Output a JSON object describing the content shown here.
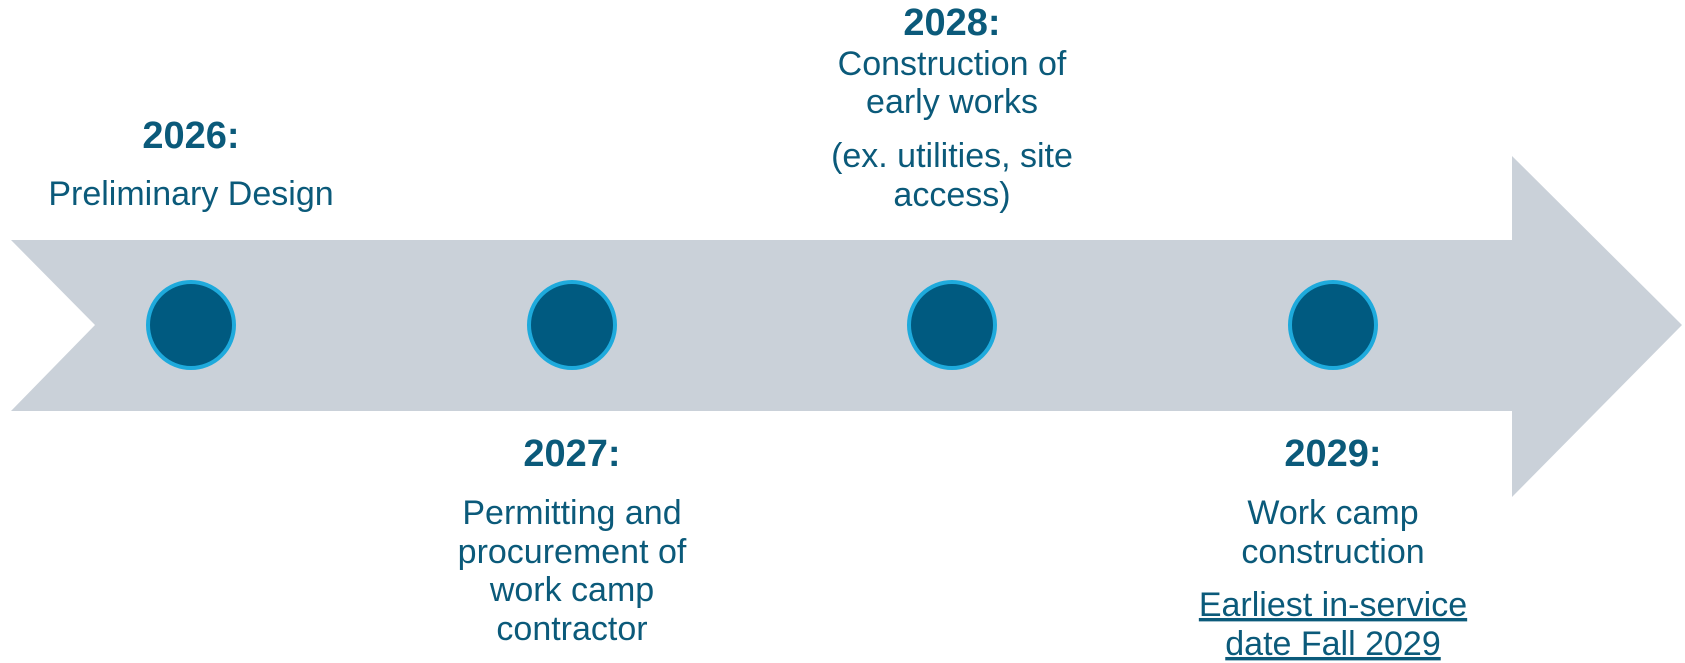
{
  "events": [
    {
      "year": "2026:",
      "description": [
        "Preliminary Design"
      ]
    },
    {
      "year": "2027:",
      "description": [
        "Permitting and",
        "procurement of",
        "work camp",
        "contractor"
      ]
    },
    {
      "year": "2028:",
      "description": [
        "Construction of",
        "early works"
      ],
      "note": [
        "(ex. utilities, site",
        "access)"
      ]
    },
    {
      "year": "2029:",
      "description": [
        "Work camp",
        "construction"
      ],
      "link": [
        "Earliest in-service",
        "date Fall 2029"
      ]
    }
  ]
}
